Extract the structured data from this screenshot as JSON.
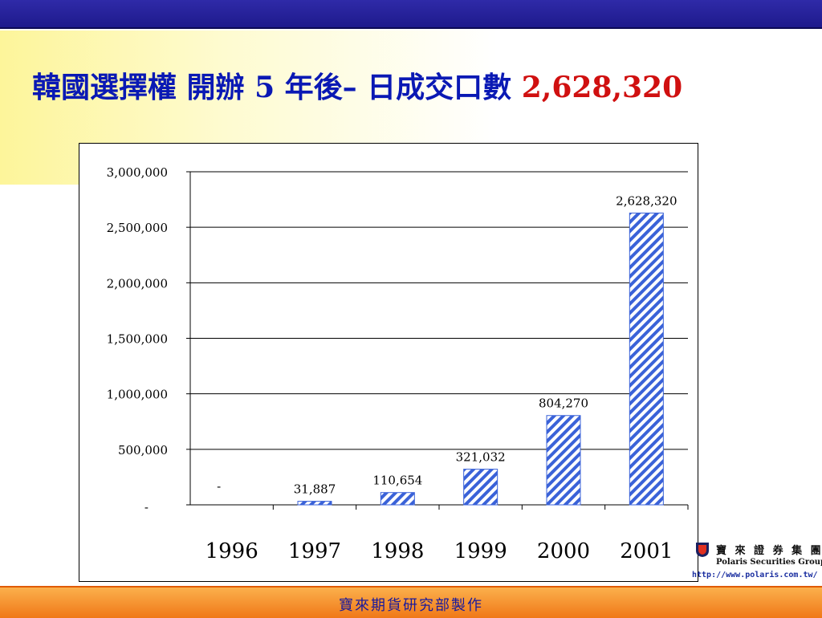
{
  "slide": {
    "title_text": "韓國選擇權 開辦 5 年後– 日成交口數",
    "title_number": "2,628,320",
    "footer": "寶來期貨研究部製作",
    "logo_cn": "寶 來 證 券 集 團",
    "logo_en": "Polaris Securities Group",
    "logo_url": "http://www.polaris.com.tw/"
  },
  "colors": {
    "title": "#0a19b4",
    "title_number": "#d01010",
    "bar_stripe": "#3a62d8",
    "footer_text": "#1a1a9c"
  },
  "chart_data": {
    "type": "bar",
    "title": "",
    "xlabel": "",
    "ylabel": "",
    "categories": [
      "1996",
      "1997",
      "1998",
      "1999",
      "2000",
      "2001"
    ],
    "values": [
      0,
      31887,
      110654,
      321032,
      804270,
      2628320
    ],
    "data_labels": [
      "-",
      "31,887",
      "110,654",
      "321,032",
      "804,270",
      "2,628,320"
    ],
    "ylim": [
      0,
      3000000
    ],
    "yticks": [
      0,
      500000,
      1000000,
      1500000,
      2000000,
      2500000,
      3000000
    ],
    "ytick_labels": [
      "-",
      "500,000",
      "1,000,000",
      "1,500,000",
      "2,000,000",
      "2,500,000",
      "3,000,000"
    ],
    "grid": true,
    "bar_pattern": "diagonal-stripes"
  }
}
